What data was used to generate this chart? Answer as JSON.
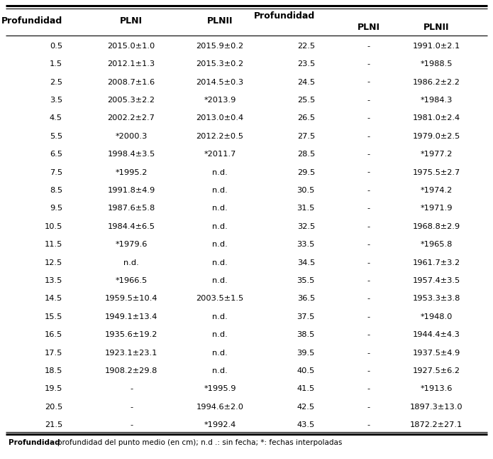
{
  "rows_left": [
    [
      "0.5",
      "2015.0±1.0",
      "2015.9±0.2"
    ],
    [
      "1.5",
      "2012.1±1.3",
      "2015.3±0.2"
    ],
    [
      "2.5",
      "2008.7±1.6",
      "2014.5±0.3"
    ],
    [
      "3.5",
      "2005.3±2.2",
      "*2013.9"
    ],
    [
      "4.5",
      "2002.2±2.7",
      "2013.0±0.4"
    ],
    [
      "5.5",
      "*2000.3",
      "2012.2±0.5"
    ],
    [
      "6.5",
      "1998.4±3.5",
      "*2011.7"
    ],
    [
      "7.5",
      "*1995.2",
      "n.d."
    ],
    [
      "8.5",
      "1991.8±4.9",
      "n.d."
    ],
    [
      "9.5",
      "1987.6±5.8",
      "n.d."
    ],
    [
      "10.5",
      "1984.4±6.5",
      "n.d."
    ],
    [
      "11.5",
      "*1979.6",
      "n.d."
    ],
    [
      "12.5",
      "n.d.",
      "n.d."
    ],
    [
      "13.5",
      "*1966.5",
      "n.d."
    ],
    [
      "14.5",
      "1959.5±10.4",
      "2003.5±1.5"
    ],
    [
      "15.5",
      "1949.1±13.4",
      "n.d."
    ],
    [
      "16.5",
      "1935.6±19.2",
      "n.d."
    ],
    [
      "17.5",
      "1923.1±23.1",
      "n.d."
    ],
    [
      "18.5",
      "1908.2±29.8",
      "n.d."
    ],
    [
      "19.5",
      "-",
      "*1995.9"
    ],
    [
      "20.5",
      "-",
      "1994.6±2.0"
    ],
    [
      "21.5",
      "-",
      "*1992.4"
    ]
  ],
  "rows_right": [
    [
      "22.5",
      "-",
      "1991.0±2.1"
    ],
    [
      "23.5",
      "-",
      "*1988.5"
    ],
    [
      "24.5",
      "-",
      "1986.2±2.2"
    ],
    [
      "25.5",
      "-",
      "*1984.3"
    ],
    [
      "26.5",
      "-",
      "1981.0±2.4"
    ],
    [
      "27.5",
      "-",
      "1979.0±2.5"
    ],
    [
      "28.5",
      "-",
      "*1977.2"
    ],
    [
      "29.5",
      "-",
      "1975.5±2.7"
    ],
    [
      "30.5",
      "-",
      "*1974.2"
    ],
    [
      "31.5",
      "-",
      "*1971.9"
    ],
    [
      "32.5",
      "-",
      "1968.8±2.9"
    ],
    [
      "33.5",
      "-",
      "*1965.8"
    ],
    [
      "34.5",
      "-",
      "1961.7±3.2"
    ],
    [
      "35.5",
      "-",
      "1957.4±3.5"
    ],
    [
      "36.5",
      "-",
      "1953.3±3.8"
    ],
    [
      "37.5",
      "-",
      "*1948.0"
    ],
    [
      "38.5",
      "-",
      "1944.4±4.3"
    ],
    [
      "39.5",
      "-",
      "1937.5±4.9"
    ],
    [
      "40.5",
      "-",
      "1927.5±6.2"
    ],
    [
      "41.5",
      "-",
      "*1913.6"
    ],
    [
      "42.5",
      "-",
      "1897.3±13.0"
    ],
    [
      "43.5",
      "-",
      "1872.2±27.1"
    ]
  ],
  "footer_bold": "Profundidad",
  "footer_rest": ": profundidad del punto medio (en cm); n.d .: sin fecha; *: fechas interpoladas",
  "bg_color": "#ffffff",
  "text_color": "#000000",
  "line_color": "#000000",
  "header_fontsize": 9.0,
  "data_fontsize": 8.2,
  "footer_fontsize": 7.5
}
